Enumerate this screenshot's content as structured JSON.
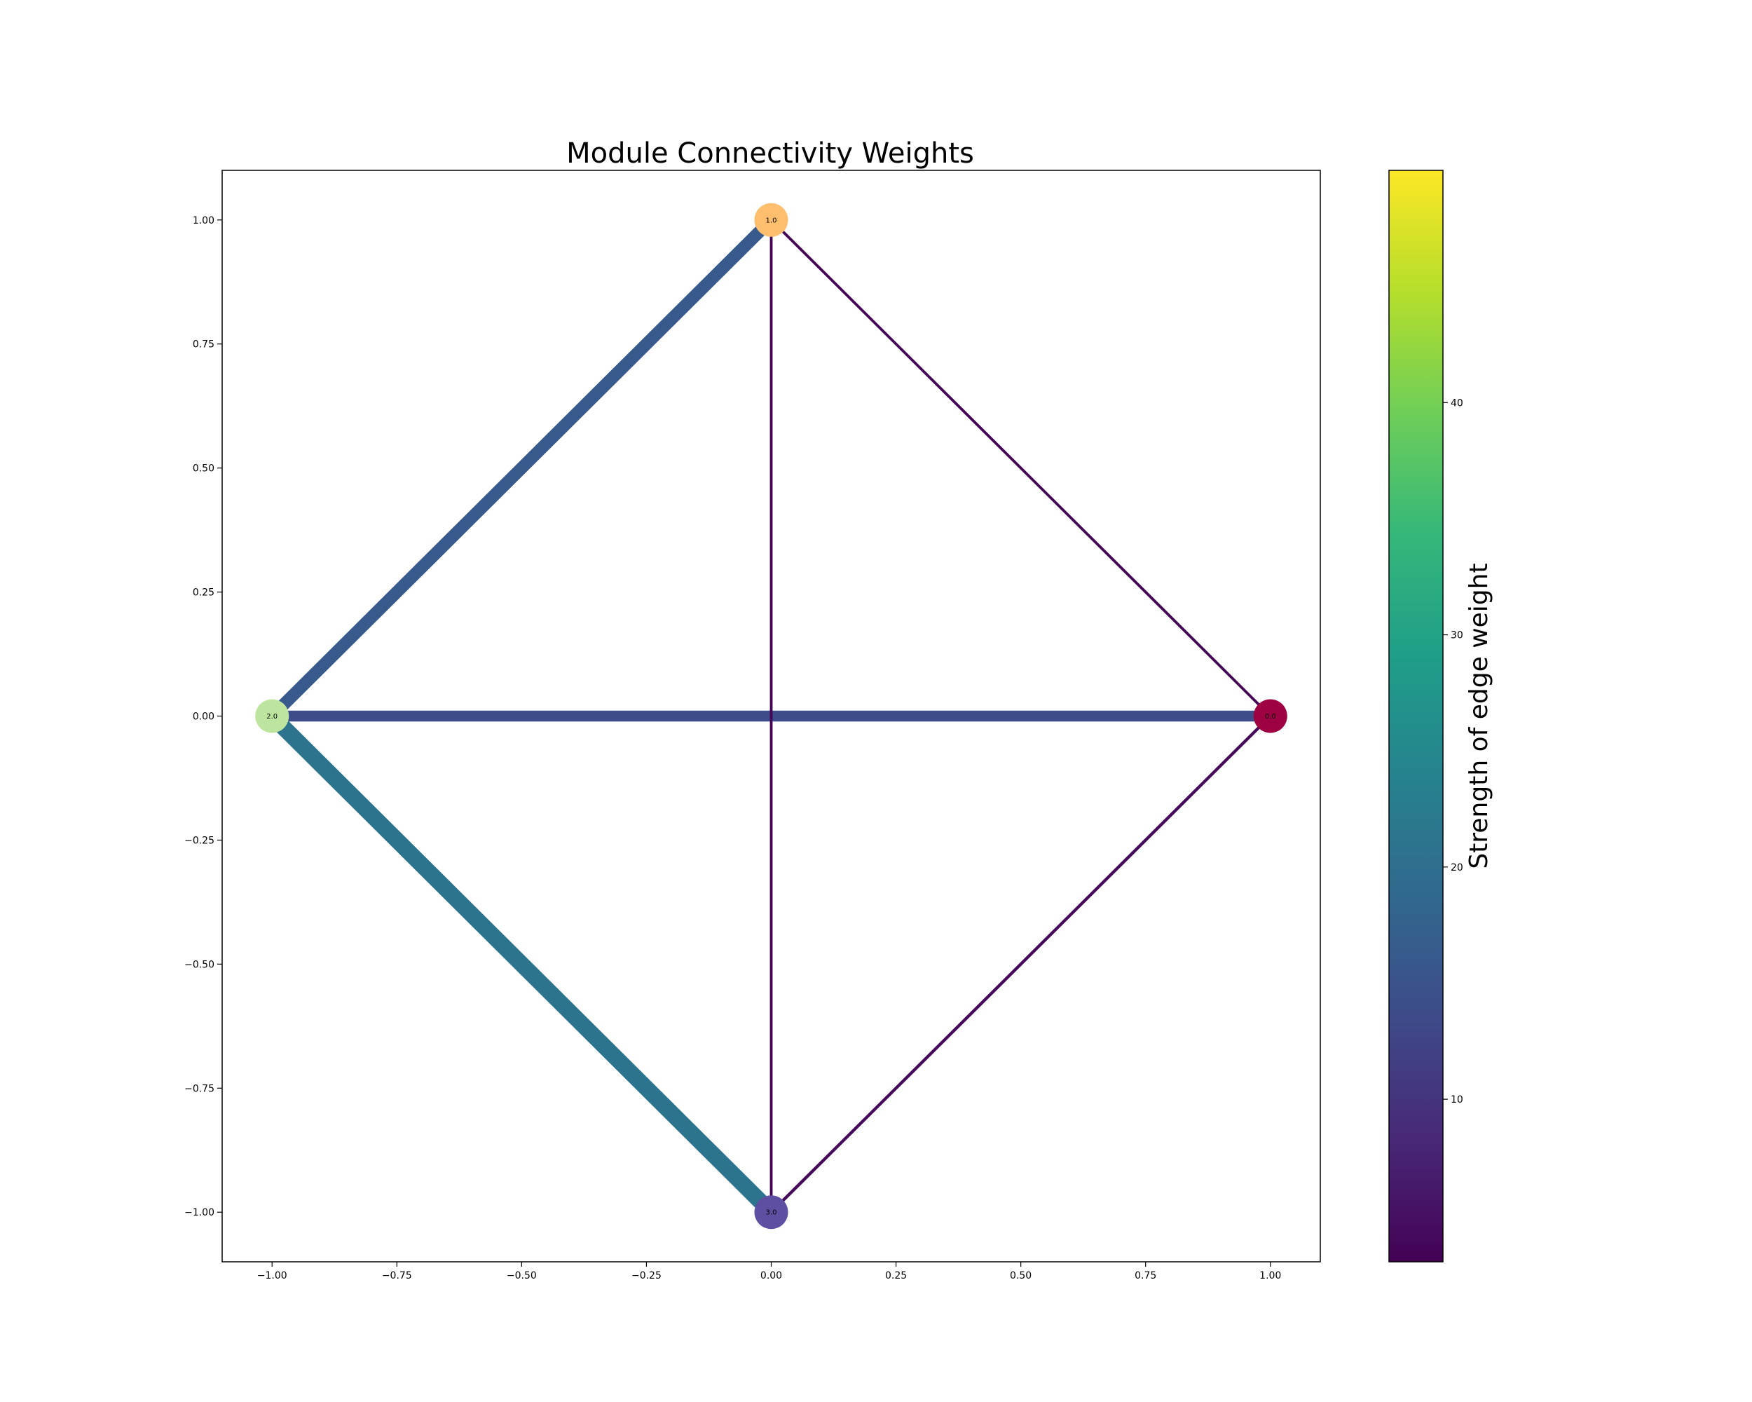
{
  "chart_data": {
    "type": "network",
    "title": "Module Connectivity Weights",
    "xlim": [
      -1.1,
      1.1
    ],
    "ylim": [
      -1.1,
      1.1
    ],
    "x_ticks": [
      -1.0,
      -0.75,
      -0.5,
      -0.25,
      0.0,
      0.25,
      0.5,
      0.75,
      1.0
    ],
    "x_tick_labels": [
      "−1.00",
      "−0.75",
      "−0.50",
      "−0.25",
      "0.00",
      "0.25",
      "0.50",
      "0.75",
      "1.00"
    ],
    "y_ticks": [
      1.0,
      0.75,
      0.5,
      0.25,
      0.0,
      -0.25,
      -0.5,
      -0.75,
      -1.0
    ],
    "y_tick_labels": [
      "1.00",
      "0.75",
      "0.50",
      "0.25",
      "0.00",
      "−0.25",
      "−0.50",
      "−0.75",
      "−1.00"
    ],
    "grid": false,
    "nodes": [
      {
        "label": "0.0",
        "x": 1.0,
        "y": 0.0,
        "color": "#9e0142"
      },
      {
        "label": "1.0",
        "x": 0.0,
        "y": 1.0,
        "color": "#fdbe6e"
      },
      {
        "label": "2.0",
        "x": -1.0,
        "y": 0.0,
        "color": "#bee5a0"
      },
      {
        "label": "3.0",
        "x": 0.0,
        "y": -1.0,
        "color": "#5e4fa2"
      }
    ],
    "edges": [
      {
        "source": "2.0",
        "target": "1.0",
        "weight": 16
      },
      {
        "source": "2.0",
        "target": "0.0",
        "weight": 14
      },
      {
        "source": "2.0",
        "target": "3.0",
        "weight": 21
      },
      {
        "source": "1.0",
        "target": "3.0",
        "weight": 3.5
      },
      {
        "source": "1.0",
        "target": "0.0",
        "weight": 3.5
      },
      {
        "source": "3.0",
        "target": "0.0",
        "weight": 4
      }
    ],
    "colorbar": {
      "label": "Strength of edge weight",
      "colormap": "viridis",
      "range": [
        3,
        50
      ],
      "ticks": [
        10,
        20,
        30,
        40
      ],
      "tick_labels": [
        "10",
        "20",
        "30",
        "40"
      ]
    }
  }
}
